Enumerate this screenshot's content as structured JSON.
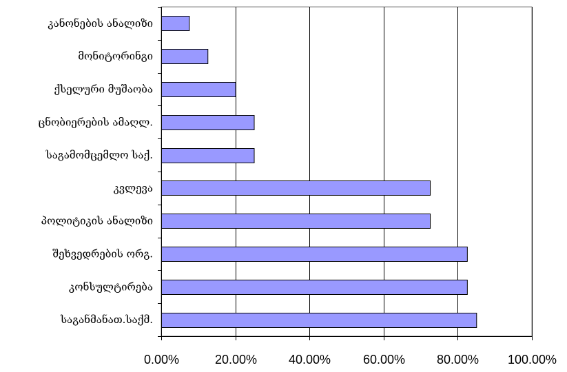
{
  "chart_data": {
    "type": "bar",
    "orientation": "horizontal",
    "categories": [
      "კანონების ანალიზი",
      "მონიტორინგი",
      "ქსელური მუშაობა",
      "ცნობიერების ამაღლ.",
      "საგამომცემლო საქ.",
      "კვლევა",
      "პოლიტიკის ანალიზი",
      "შეხვედრების ორგ.",
      "კონსულტირება",
      "საგანმანათ.საქმ."
    ],
    "values": [
      0.075,
      0.125,
      0.2,
      0.25,
      0.25,
      0.725,
      0.725,
      0.825,
      0.825,
      0.85
    ],
    "xlim": [
      0,
      1
    ],
    "x_ticks": [
      "0.00%",
      "20.00%",
      "40.00%",
      "60.00%",
      "80.00%",
      "100.00%"
    ],
    "grid": "vertical",
    "legend": "none",
    "bar_color": "#9999ff",
    "bar_edge_color": "#000000",
    "title": "",
    "xlabel": "",
    "ylabel": ""
  }
}
